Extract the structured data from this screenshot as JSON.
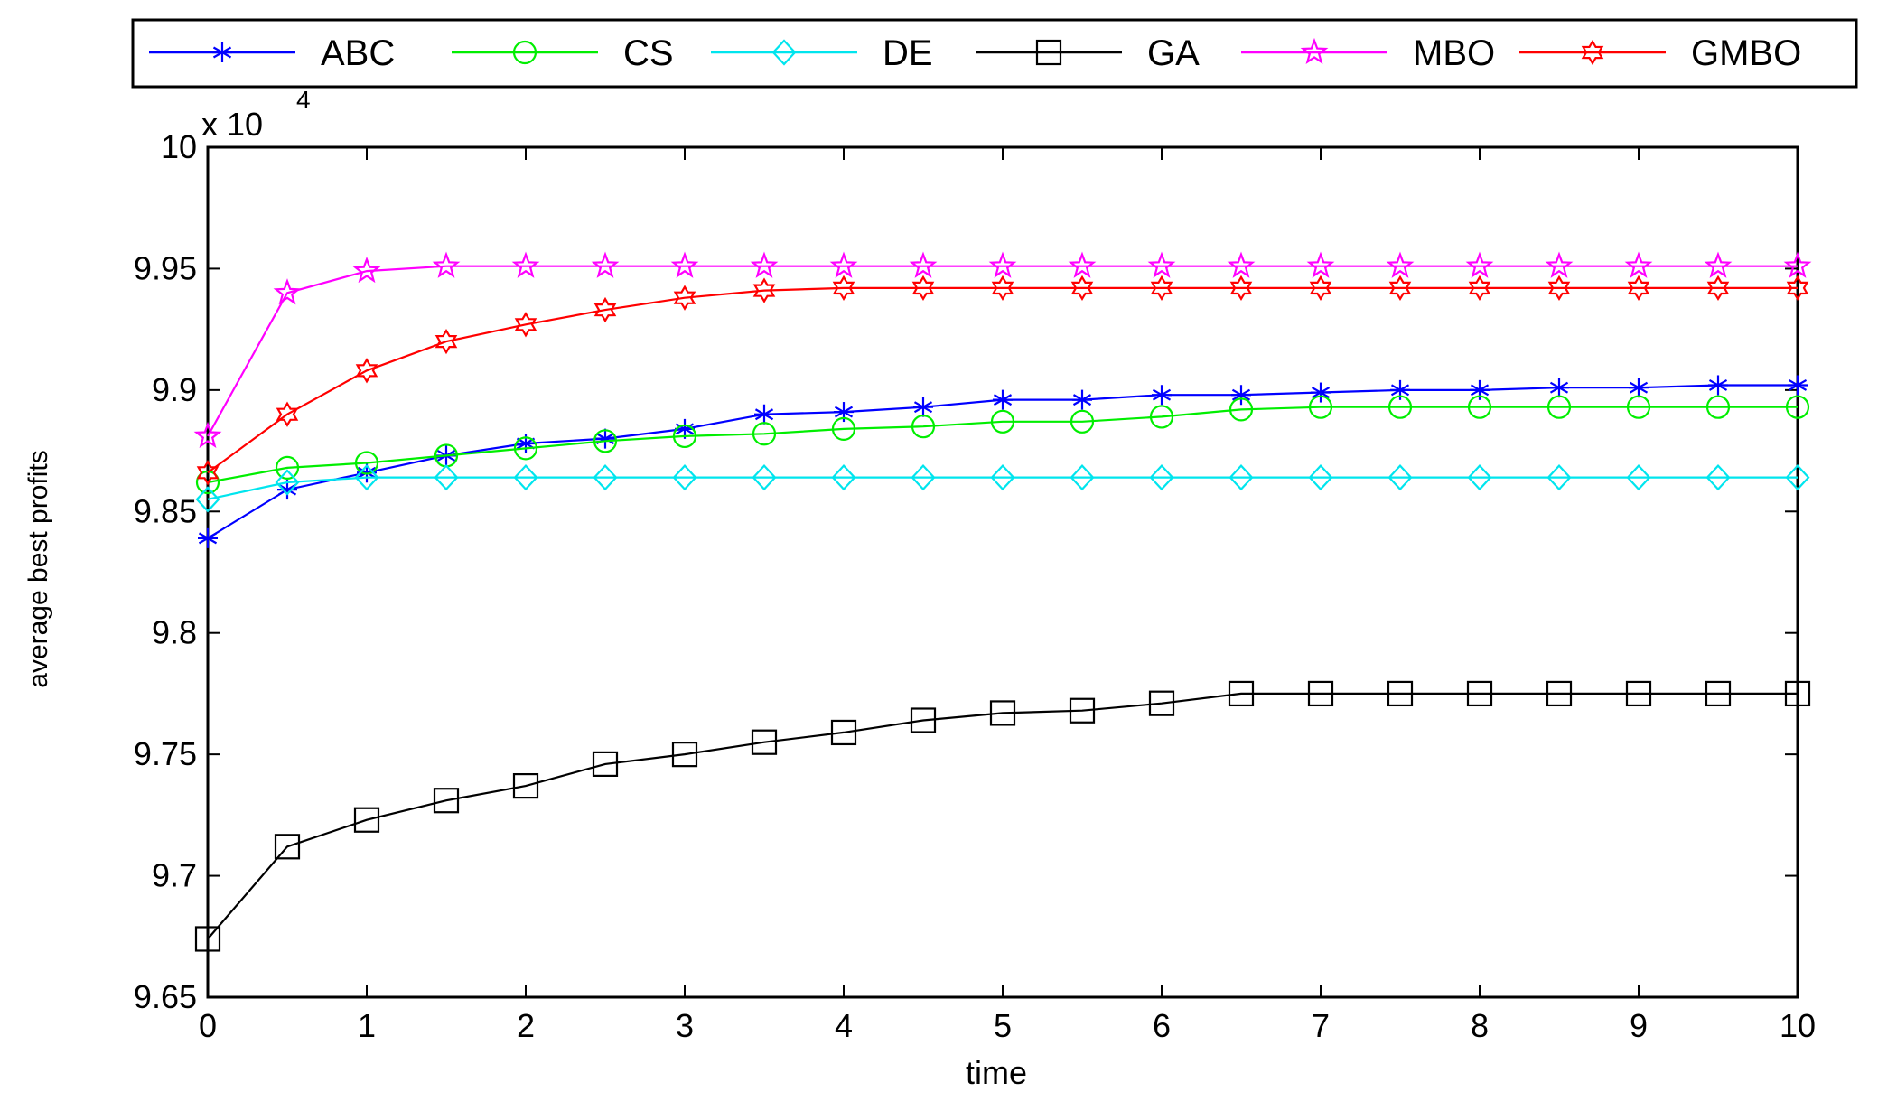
{
  "chart_data": {
    "type": "line",
    "title": "",
    "xlabel": "time",
    "ylabel": "average best profits",
    "y_exponent_label": "x 10",
    "y_exponent_power": "4",
    "xlim": [
      0,
      10
    ],
    "ylim": [
      9.65,
      10
    ],
    "grid": false,
    "legend_position": "top",
    "x_ticks": [
      0,
      1,
      2,
      3,
      4,
      5,
      6,
      7,
      8,
      9,
      10
    ],
    "x_tick_labels": [
      "0",
      "1",
      "2",
      "3",
      "4",
      "5",
      "6",
      "7",
      "8",
      "9",
      "10"
    ],
    "y_ticks": [
      9.65,
      9.7,
      9.75,
      9.8,
      9.85,
      9.9,
      9.95,
      10
    ],
    "y_tick_labels": [
      "9.65",
      "9.7",
      "9.75",
      "9.8",
      "9.85",
      "9.9",
      "9.95",
      "10"
    ],
    "x": [
      0,
      0.5,
      1,
      1.5,
      2,
      2.5,
      3,
      3.5,
      4,
      4.5,
      5,
      5.5,
      6,
      6.5,
      7,
      7.5,
      8,
      8.5,
      9,
      9.5,
      10
    ],
    "series": [
      {
        "name": "ABC",
        "color": "#0000ff",
        "marker": "asterisk",
        "values": [
          9.839,
          9.859,
          9.866,
          9.873,
          9.878,
          9.88,
          9.884,
          9.89,
          9.891,
          9.893,
          9.896,
          9.896,
          9.898,
          9.898,
          9.899,
          9.9,
          9.9,
          9.901,
          9.901,
          9.902,
          9.902
        ]
      },
      {
        "name": "CS",
        "color": "#00ee00",
        "marker": "circle",
        "values": [
          9.862,
          9.868,
          9.87,
          9.873,
          9.876,
          9.879,
          9.881,
          9.882,
          9.884,
          9.885,
          9.887,
          9.887,
          9.889,
          9.892,
          9.893,
          9.893,
          9.893,
          9.893,
          9.893,
          9.893,
          9.893
        ]
      },
      {
        "name": "DE",
        "color": "#00e5ee",
        "marker": "diamond",
        "values": [
          9.855,
          9.862,
          9.864,
          9.864,
          9.864,
          9.864,
          9.864,
          9.864,
          9.864,
          9.864,
          9.864,
          9.864,
          9.864,
          9.864,
          9.864,
          9.864,
          9.864,
          9.864,
          9.864,
          9.864,
          9.864
        ]
      },
      {
        "name": "GA",
        "color": "#000000",
        "marker": "square",
        "values": [
          9.674,
          9.712,
          9.723,
          9.731,
          9.737,
          9.746,
          9.75,
          9.755,
          9.759,
          9.764,
          9.767,
          9.768,
          9.771,
          9.775,
          9.775,
          9.775,
          9.775,
          9.775,
          9.775,
          9.775,
          9.775
        ]
      },
      {
        "name": "MBO",
        "color": "#ff00ff",
        "marker": "star",
        "values": [
          9.881,
          9.94,
          9.949,
          9.951,
          9.951,
          9.951,
          9.951,
          9.951,
          9.951,
          9.951,
          9.951,
          9.951,
          9.951,
          9.951,
          9.951,
          9.951,
          9.951,
          9.951,
          9.951,
          9.951,
          9.951
        ]
      },
      {
        "name": "GMBO",
        "color": "#ff0000",
        "marker": "hexagram",
        "values": [
          9.866,
          9.89,
          9.908,
          9.92,
          9.927,
          9.933,
          9.938,
          9.941,
          9.942,
          9.942,
          9.942,
          9.942,
          9.942,
          9.942,
          9.942,
          9.942,
          9.942,
          9.942,
          9.942,
          9.942,
          9.942
        ]
      }
    ]
  }
}
